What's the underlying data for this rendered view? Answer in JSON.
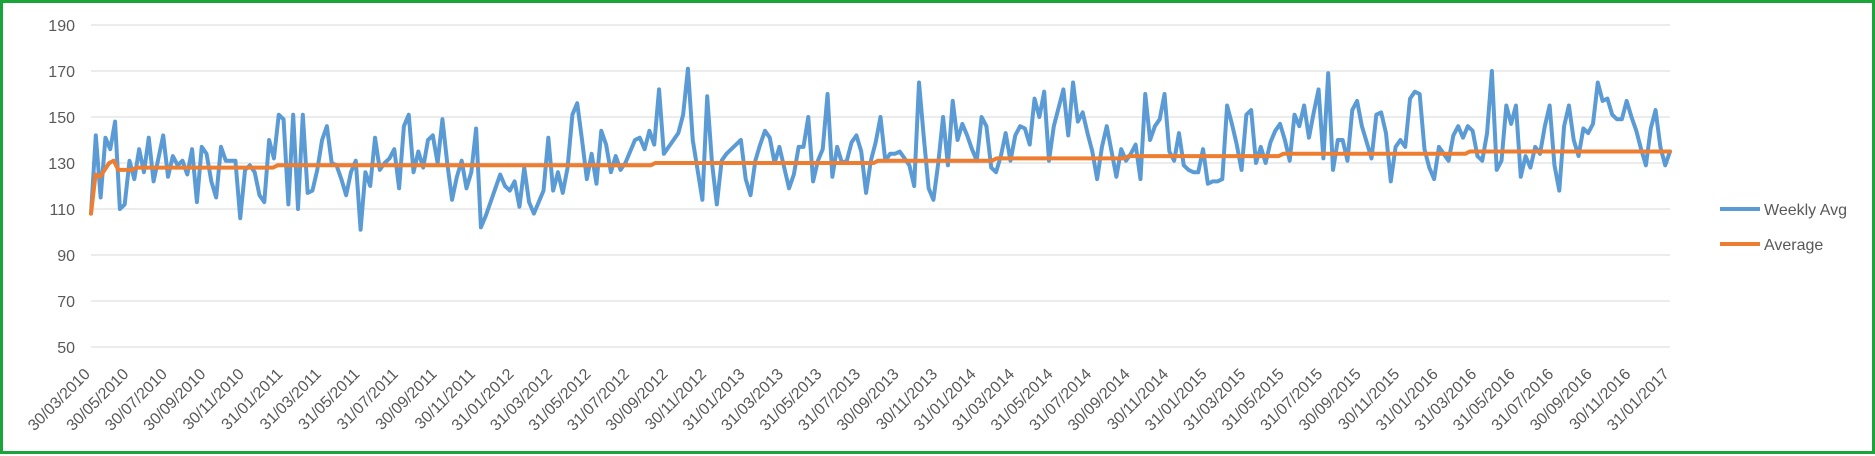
{
  "chart_data": {
    "type": "line",
    "title": "",
    "xlabel": "",
    "ylabel": "",
    "ylim": [
      50,
      190
    ],
    "y_ticks": [
      50,
      70,
      90,
      110,
      130,
      150,
      170,
      190
    ],
    "x_tick_labels": [
      "30/03/2010",
      "30/05/2010",
      "30/07/2010",
      "30/09/2010",
      "30/11/2010",
      "31/01/2011",
      "31/03/2011",
      "31/05/2011",
      "31/07/2011",
      "30/09/2011",
      "30/11/2011",
      "31/01/2012",
      "31/03/2012",
      "31/05/2012",
      "31/07/2012",
      "30/09/2012",
      "30/11/2012",
      "31/01/2013",
      "31/03/2013",
      "31/05/2013",
      "31/07/2013",
      "30/09/2013",
      "30/11/2013",
      "31/01/2014",
      "31/03/2014",
      "31/05/2014",
      "31/07/2014",
      "30/09/2014",
      "30/11/2014",
      "31/01/2015",
      "31/03/2015",
      "31/05/2015",
      "31/07/2015",
      "30/09/2015",
      "30/11/2015",
      "31/01/2016",
      "31/03/2016",
      "31/05/2016",
      "31/07/2016",
      "30/09/2016",
      "30/11/2016",
      "31/01/2017"
    ],
    "grid": true,
    "legend_position": "right",
    "colors": {
      "weekly": "#5b9bd5",
      "average": "#ed7d31",
      "grid": "#d9d9d9",
      "border": "#1aa43a"
    },
    "series": [
      {
        "name": "Weekly Avg",
        "values": [
          108,
          142,
          115,
          141,
          136,
          148,
          110,
          112,
          131,
          123,
          136,
          126,
          141,
          122,
          132,
          142,
          124,
          133,
          129,
          131,
          125,
          136,
          113,
          137,
          134,
          122,
          115,
          137,
          131,
          131,
          131,
          106,
          127,
          129,
          126,
          116,
          113,
          140,
          132,
          151,
          149,
          112,
          151,
          110,
          151,
          117,
          118,
          127,
          140,
          146,
          130,
          129,
          123,
          116,
          126,
          131,
          101,
          126,
          120,
          141,
          127,
          130,
          132,
          136,
          119,
          146,
          151,
          126,
          135,
          128,
          140,
          142,
          130,
          149,
          130,
          114,
          124,
          131,
          119,
          126,
          145,
          102,
          107,
          113,
          119,
          125,
          120,
          118,
          122,
          111,
          128,
          113,
          108,
          113,
          118,
          141,
          118,
          126,
          117,
          128,
          151,
          156,
          140,
          123,
          134,
          121,
          144,
          138,
          126,
          133,
          127,
          130,
          135,
          140,
          141,
          136,
          144,
          138,
          162,
          134,
          137,
          140,
          143,
          151,
          171,
          140,
          127,
          114,
          159,
          130,
          112,
          131,
          134,
          136,
          138,
          140,
          123,
          116,
          131,
          138,
          144,
          141,
          130,
          137,
          128,
          119,
          125,
          137,
          137,
          150,
          122,
          131,
          136,
          160,
          124,
          137,
          130,
          131,
          139,
          142,
          135,
          117,
          131,
          139,
          150,
          131,
          134,
          134,
          135,
          132,
          129,
          120,
          165,
          141,
          119,
          114,
          130,
          150,
          129,
          157,
          140,
          147,
          142,
          136,
          131,
          150,
          146,
          128,
          126,
          133,
          143,
          131,
          142,
          146,
          145,
          138,
          158,
          150,
          161,
          131,
          146,
          154,
          162,
          142,
          165,
          148,
          152,
          143,
          135,
          123,
          137,
          146,
          135,
          124,
          136,
          131,
          134,
          138,
          123,
          160,
          140,
          146,
          149,
          160,
          135,
          131,
          143,
          129,
          127,
          126,
          126,
          136,
          121,
          122,
          122,
          123,
          155,
          147,
          138,
          127,
          151,
          153,
          130,
          137,
          130,
          139,
          144,
          147,
          140,
          131,
          151,
          146,
          155,
          141,
          152,
          162,
          132,
          169,
          127,
          140,
          140,
          131,
          153,
          157,
          146,
          139,
          132,
          151,
          152,
          143,
          122,
          137,
          140,
          137,
          158,
          161,
          160,
          136,
          128,
          123,
          137,
          134,
          131,
          142,
          146,
          141,
          146,
          144,
          133,
          131,
          143,
          170,
          127,
          131,
          155,
          147,
          155,
          124,
          133,
          128,
          137,
          134,
          146,
          155,
          129,
          118,
          146,
          155,
          140,
          133,
          145,
          143,
          147,
          165,
          157,
          158,
          151,
          149,
          149,
          157,
          150,
          144,
          136,
          129,
          145,
          153,
          137,
          129,
          135
        ]
      },
      {
        "name": "Average",
        "values": [
          108,
          125,
          124,
          127,
          130,
          131,
          127,
          127,
          127,
          127,
          128,
          128,
          128,
          128,
          128,
          128,
          128,
          128,
          128,
          128,
          128,
          128,
          128,
          128,
          128,
          128,
          128,
          128,
          128,
          128,
          128,
          128,
          128,
          128,
          128,
          128,
          128,
          128,
          128,
          128,
          128,
          129,
          129,
          129,
          129,
          129,
          129,
          129,
          129,
          129,
          129,
          129,
          129,
          129,
          129,
          129,
          129,
          129,
          129,
          129,
          129,
          129,
          129,
          129,
          129,
          129,
          129,
          129,
          129,
          129,
          129,
          129,
          129,
          129,
          129,
          129,
          129,
          129,
          129,
          129,
          129,
          129,
          129,
          129,
          129,
          129,
          129,
          129,
          129,
          129,
          129,
          129,
          129,
          129,
          129,
          129,
          129,
          129,
          129,
          129,
          129,
          129,
          129,
          129,
          129,
          129,
          129,
          129,
          129,
          129,
          129,
          129,
          129,
          129,
          129,
          129,
          129,
          129,
          129,
          129,
          129,
          129,
          129,
          129,
          130,
          130,
          130,
          130,
          130,
          130,
          130,
          130,
          130,
          130,
          130,
          130,
          130,
          130,
          130,
          130,
          130,
          130,
          130,
          130,
          130,
          130,
          130,
          130,
          130,
          130,
          130,
          130,
          130,
          130,
          130,
          130,
          130,
          130,
          130,
          130,
          130,
          130,
          130,
          130,
          130,
          130,
          130,
          130,
          130,
          130,
          130,
          130,
          130,
          131,
          131,
          131,
          131,
          131,
          131,
          131,
          131,
          131,
          131,
          131,
          131,
          131,
          131,
          131,
          131,
          131,
          131,
          131,
          131,
          131,
          131,
          131,
          131,
          131,
          131,
          132,
          132,
          132,
          132,
          132,
          132,
          132,
          132,
          132,
          132,
          132,
          132,
          132,
          132,
          132,
          132,
          132,
          132,
          132,
          132,
          132,
          132,
          132,
          132,
          132,
          132,
          132,
          132,
          132,
          133,
          133,
          133,
          133,
          133,
          133,
          133,
          133,
          133,
          133,
          133,
          133,
          133,
          133,
          133,
          133,
          133,
          133,
          133,
          133,
          133,
          133,
          133,
          133,
          133,
          133,
          133,
          133,
          133,
          133,
          133,
          133,
          133,
          133,
          134,
          134,
          134,
          134,
          134,
          134,
          134,
          134,
          134,
          134,
          134,
          134,
          134,
          134,
          134,
          134,
          134,
          134,
          134,
          134,
          134,
          134,
          134,
          134,
          134,
          134,
          134,
          134,
          134,
          134,
          134,
          134,
          134,
          134,
          134,
          134,
          134,
          134,
          134,
          134,
          134,
          135,
          135,
          135,
          135,
          135,
          135,
          135,
          135,
          135,
          135,
          135,
          135,
          135,
          135,
          135,
          135,
          135,
          135,
          135,
          135,
          135,
          135,
          135,
          135,
          135,
          135,
          135,
          135,
          135,
          135,
          135,
          135,
          135,
          135,
          135,
          135,
          135,
          135,
          135,
          135,
          135,
          135,
          135,
          135,
          135
        ]
      }
    ]
  }
}
